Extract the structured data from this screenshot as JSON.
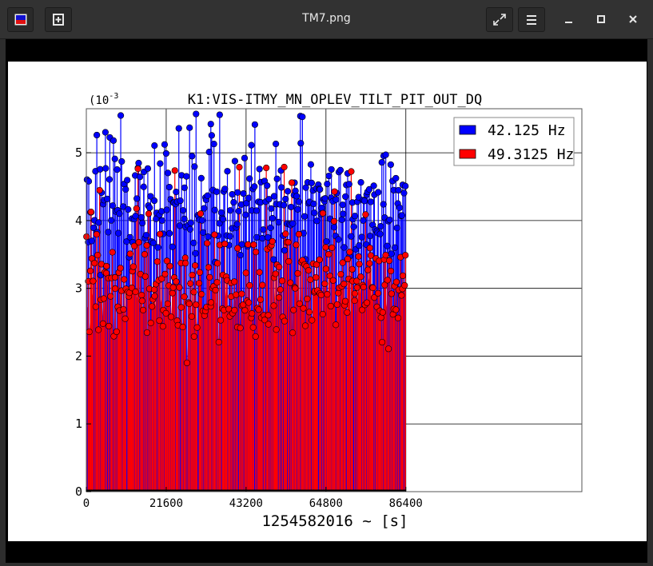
{
  "window": {
    "title": "TM7.png",
    "buttons": [
      "app-icon",
      "new-tab",
      "fullscreen",
      "menu",
      "minimize",
      "maximize",
      "close"
    ]
  },
  "colors": {
    "series1": "#0000ff",
    "series2": "#ff0000",
    "titlebar": "#323232",
    "viewer": "#000000"
  },
  "chart_data": {
    "type": "scatter",
    "style": "stem",
    "title": "K1:VIS-ITMY_MN_OPLEV_TILT_PIT_OUT_DQ",
    "xlabel": "1254582016 ~ [s]",
    "ylabel": "",
    "y_scale_label": "(10",
    "y_scale_exponent": "-3",
    "xlim": [
      0,
      134000
    ],
    "ylim": [
      0,
      5.65
    ],
    "x_ticks": [
      "0",
      "21600",
      "43200",
      "64800",
      "86400"
    ],
    "x_tick_values": [
      0,
      21600,
      43200,
      64800,
      86400
    ],
    "y_ticks": [
      "0",
      "1",
      "2",
      "3",
      "4",
      "5"
    ],
    "y_tick_values": [
      0,
      1,
      2,
      3,
      4,
      5
    ],
    "grid": true,
    "legend_position": "top-right",
    "series": [
      {
        "name": "42.125 Hz",
        "color": "#0000ff",
        "x_range": [
          0,
          86400
        ],
        "typical_range": [
          3.3,
          5.0
        ],
        "mean": 4.2,
        "max": 5.6
      },
      {
        "name": "49.3125 Hz",
        "color": "#ff0000",
        "x_range": [
          0,
          86400
        ],
        "typical_range": [
          2.0,
          4.0
        ],
        "mean": 3.0,
        "min": 1.9,
        "max": 4.8
      }
    ]
  }
}
